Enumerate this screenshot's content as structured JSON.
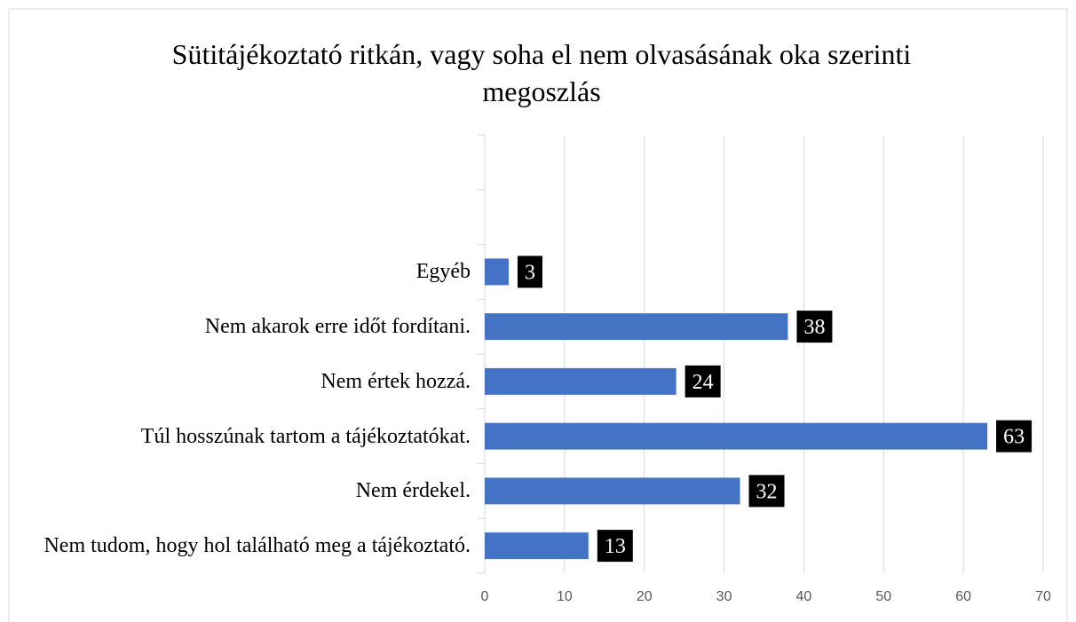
{
  "chart_data": {
    "type": "bar",
    "orientation": "horizontal",
    "title": "Sütitájékoztató ritkán, vagy soha el nem olvasásának oka szerinti megoszlás",
    "categories": [
      null,
      null,
      "Egyéb",
      "Nem akarok erre időt fordítani.",
      "Nem értek hozzá.",
      "Túl hosszúnak tartom a tájékoztatókat.",
      "Nem érdekel.",
      "Nem tudom, hogy hol található meg a tájékoztató."
    ],
    "values": [
      null,
      null,
      3,
      38,
      24,
      63,
      32,
      13
    ],
    "color": "#4472c4",
    "xlim": [
      0,
      70
    ],
    "xticks": [
      0,
      10,
      20,
      30,
      40,
      50,
      60,
      70
    ],
    "grid": true
  }
}
